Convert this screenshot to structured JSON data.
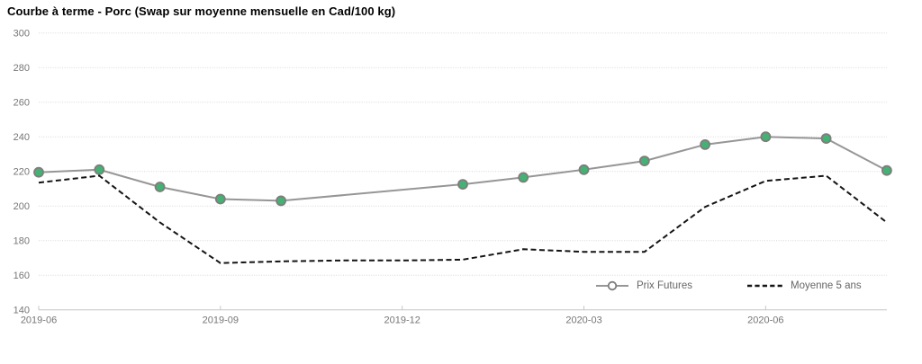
{
  "chart_data": {
    "type": "line",
    "title": "Courbe à terme - Porc (Swap sur moyenne mensuelle en Cad/100 kg)",
    "grid": "horizontal-dotted-light-gray",
    "legend_position": "inside-bottom-right",
    "y_axis": {
      "range": [
        140,
        300
      ],
      "tick_step": 20,
      "tick_values": [
        300,
        280,
        260,
        240,
        220,
        200,
        180,
        160,
        140
      ]
    },
    "x_axis": {
      "start_month": "2019-06",
      "end_month": "2020-08",
      "tick_labels": [
        "2019-06",
        "2019-09",
        "2019-12",
        "2020-03",
        "2020-06"
      ],
      "tick_every_months": 3
    },
    "series": [
      {
        "name": "Prix Futures",
        "line": "solid",
        "color": "#969696",
        "marker": "circle",
        "marker_fill": "#45b173",
        "marker_stroke": "#7d7d7d",
        "x": [
          "2019-06",
          "2019-07",
          "2019-08",
          "2019-09",
          "2019-10",
          "2020-01",
          "2020-02",
          "2020-03",
          "2020-04",
          "2020-05",
          "2020-06",
          "2020-07",
          "2020-08"
        ],
        "values": [
          219.5,
          221,
          211,
          204,
          203,
          212.5,
          216.5,
          221,
          226,
          235.5,
          240,
          239,
          220.5
        ]
      },
      {
        "name": "Moyenne 5 ans",
        "line": "dashed",
        "color": "#141414",
        "marker": "none",
        "x": [
          "2019-06",
          "2019-07",
          "2019-08",
          "2019-09",
          "2019-10",
          "2019-11",
          "2019-12",
          "2020-01",
          "2020-02",
          "2020-03",
          "2020-04",
          "2020-05",
          "2020-06",
          "2020-07",
          "2020-08"
        ],
        "values": [
          213.5,
          217.5,
          190.5,
          167,
          168,
          168.5,
          168.5,
          169,
          175,
          173.5,
          173.5,
          199.5,
          214.5,
          217.5,
          190.5
        ]
      }
    ]
  },
  "colors": {
    "gridline": "#d8d8d8",
    "axis_line": "#c6c6c6",
    "axis_text": "#767676",
    "legend_text": "#666666"
  }
}
